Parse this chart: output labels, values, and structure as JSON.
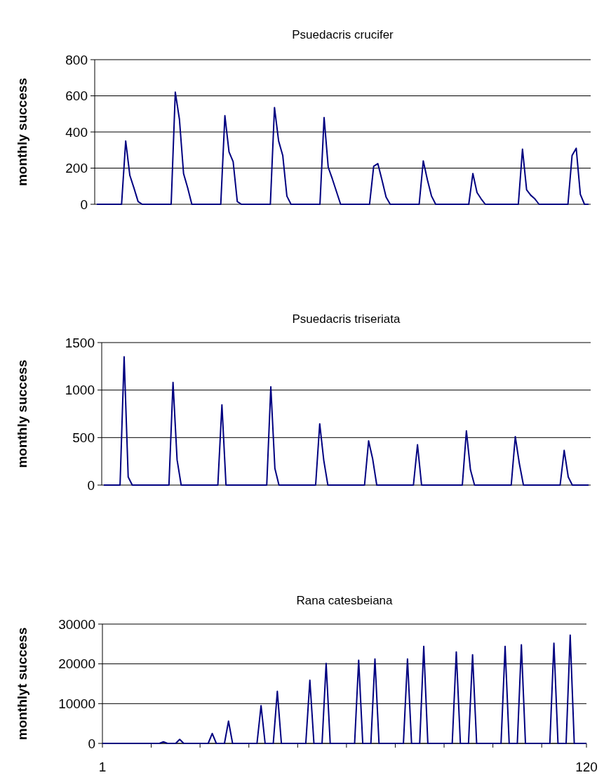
{
  "chart_data": [
    {
      "type": "line",
      "title": "Psuedacris crucifer",
      "ylabel": "monthly success",
      "color": "#000080",
      "grid": "y",
      "tick_labels": "y",
      "marker": "none",
      "categories": [
        null,
        null,
        null,
        null,
        null,
        null,
        null,
        null,
        null,
        null,
        null,
        null,
        null,
        null,
        null,
        null,
        null,
        null,
        null,
        null,
        null,
        null,
        null,
        null,
        null,
        null,
        null,
        null,
        null,
        null,
        null,
        null,
        null,
        null,
        null,
        null,
        null,
        null,
        null,
        null,
        null,
        null,
        null,
        null,
        null,
        null,
        null,
        null,
        null,
        null,
        null,
        null,
        null,
        null,
        null,
        null,
        null,
        null,
        null,
        null,
        null,
        null,
        null,
        null,
        null,
        null,
        null,
        null,
        null,
        null,
        null,
        null,
        null,
        null,
        null,
        null,
        null,
        null,
        null,
        null,
        null,
        null,
        null,
        null,
        null,
        null,
        null,
        null,
        null,
        null,
        null,
        null,
        null,
        null,
        null,
        null,
        null,
        null,
        null,
        null,
        null,
        null,
        null,
        null,
        null,
        null,
        null,
        null,
        null,
        null,
        null,
        null,
        null,
        null,
        null,
        null,
        null,
        null,
        null,
        null
      ],
      "values": [
        0,
        0,
        0,
        0,
        0,
        0,
        0,
        350,
        160,
        90,
        15,
        0,
        0,
        0,
        0,
        0,
        0,
        0,
        0,
        620,
        470,
        170,
        90,
        0,
        0,
        0,
        0,
        0,
        0,
        0,
        0,
        490,
        290,
        235,
        15,
        0,
        0,
        0,
        0,
        0,
        0,
        0,
        0,
        535,
        350,
        270,
        45,
        0,
        0,
        0,
        0,
        0,
        0,
        0,
        0,
        480,
        205,
        140,
        70,
        0,
        0,
        0,
        0,
        0,
        0,
        0,
        0,
        210,
        225,
        135,
        40,
        0,
        0,
        0,
        0,
        0,
        0,
        0,
        0,
        240,
        135,
        45,
        0,
        0,
        0,
        0,
        0,
        0,
        0,
        0,
        0,
        170,
        65,
        30,
        0,
        0,
        0,
        0,
        0,
        0,
        0,
        0,
        0,
        305,
        80,
        50,
        30,
        0,
        0,
        0,
        0,
        0,
        0,
        0,
        0,
        270,
        310,
        55,
        0,
        0
      ],
      "ylim": [
        0,
        800
      ],
      "yticks": [
        0,
        200,
        400,
        600,
        800
      ]
    },
    {
      "type": "line",
      "title": "Psuedacris triseriata",
      "ylabel": "monthly success",
      "color": "#000080",
      "grid": "y",
      "tick_labels": "y",
      "marker": "none",
      "categories": [
        null,
        null,
        null,
        null,
        null,
        null,
        null,
        null,
        null,
        null,
        null,
        null,
        null,
        null,
        null,
        null,
        null,
        null,
        null,
        null,
        null,
        null,
        null,
        null,
        null,
        null,
        null,
        null,
        null,
        null,
        null,
        null,
        null,
        null,
        null,
        null,
        null,
        null,
        null,
        null,
        null,
        null,
        null,
        null,
        null,
        null,
        null,
        null,
        null,
        null,
        null,
        null,
        null,
        null,
        null,
        null,
        null,
        null,
        null,
        null,
        null,
        null,
        null,
        null,
        null,
        null,
        null,
        null,
        null,
        null,
        null,
        null,
        null,
        null,
        null,
        null,
        null,
        null,
        null,
        null,
        null,
        null,
        null,
        null,
        null,
        null,
        null,
        null,
        null,
        null,
        null,
        null,
        null,
        null,
        null,
        null,
        null,
        null,
        null,
        null,
        null,
        null,
        null,
        null,
        null,
        null,
        null,
        null,
        null,
        null,
        null,
        null,
        null,
        null,
        null,
        null,
        null,
        null,
        null,
        null
      ],
      "values": [
        0,
        0,
        0,
        0,
        0,
        1350,
        85,
        0,
        0,
        0,
        0,
        0,
        0,
        0,
        0,
        0,
        0,
        1080,
        265,
        0,
        0,
        0,
        0,
        0,
        0,
        0,
        0,
        0,
        0,
        845,
        0,
        0,
        0,
        0,
        0,
        0,
        0,
        0,
        0,
        0,
        0,
        1035,
        175,
        0,
        0,
        0,
        0,
        0,
        0,
        0,
        0,
        0,
        0,
        645,
        260,
        0,
        0,
        0,
        0,
        0,
        0,
        0,
        0,
        0,
        0,
        465,
        275,
        0,
        0,
        0,
        0,
        0,
        0,
        0,
        0,
        0,
        0,
        425,
        0,
        0,
        0,
        0,
        0,
        0,
        0,
        0,
        0,
        0,
        0,
        570,
        160,
        0,
        0,
        0,
        0,
        0,
        0,
        0,
        0,
        0,
        0,
        510,
        225,
        0,
        0,
        0,
        0,
        0,
        0,
        0,
        0,
        0,
        0,
        365,
        85,
        0,
        0,
        0,
        0,
        0
      ],
      "ylim": [
        0,
        1500
      ],
      "yticks": [
        0,
        500,
        1000,
        1500
      ]
    },
    {
      "type": "line",
      "title": "Rana catesbeiana",
      "ylabel": "monthlyt success",
      "color": "#000080",
      "grid": "y",
      "marker": "none",
      "x": [
        1,
        2,
        3,
        4,
        5,
        6,
        7,
        8,
        9,
        10,
        11,
        12,
        13,
        14,
        15,
        16,
        17,
        18,
        19,
        20,
        21,
        22,
        23,
        24,
        25,
        26,
        27,
        28,
        29,
        30,
        31,
        32,
        33,
        34,
        35,
        36,
        37,
        38,
        39,
        40,
        41,
        42,
        43,
        44,
        45,
        46,
        47,
        48,
        49,
        50,
        51,
        52,
        53,
        54,
        55,
        56,
        57,
        58,
        59,
        60,
        61,
        62,
        63,
        64,
        65,
        66,
        67,
        68,
        69,
        70,
        71,
        72,
        73,
        74,
        75,
        76,
        77,
        78,
        79,
        80,
        81,
        82,
        83,
        84,
        85,
        86,
        87,
        88,
        89,
        90,
        91,
        92,
        93,
        94,
        95,
        96,
        97,
        98,
        99,
        100,
        101,
        102,
        103,
        104,
        105,
        106,
        107,
        108,
        109,
        110,
        111,
        112,
        113,
        114,
        115,
        116,
        117,
        118,
        119,
        120
      ],
      "values": [
        0,
        0,
        0,
        0,
        0,
        0,
        0,
        0,
        0,
        0,
        0,
        0,
        0,
        0,
        0,
        400,
        0,
        0,
        0,
        1000,
        0,
        0,
        0,
        0,
        0,
        0,
        0,
        2500,
        0,
        0,
        0,
        5600,
        0,
        0,
        0,
        0,
        0,
        0,
        0,
        9500,
        0,
        0,
        0,
        13100,
        0,
        0,
        0,
        0,
        0,
        0,
        0,
        15900,
        0,
        0,
        0,
        20100,
        0,
        0,
        0,
        0,
        0,
        0,
        0,
        20900,
        0,
        0,
        0,
        21200,
        0,
        0,
        0,
        0,
        0,
        0,
        0,
        21200,
        0,
        0,
        0,
        24400,
        0,
        0,
        0,
        0,
        0,
        0,
        0,
        23000,
        0,
        0,
        0,
        22300,
        0,
        0,
        0,
        0,
        0,
        0,
        0,
        24400,
        0,
        0,
        0,
        24800,
        0,
        0,
        0,
        0,
        0,
        0,
        0,
        25200,
        0,
        0,
        0,
        27200,
        0,
        0,
        0,
        0
      ],
      "xlim": [
        1,
        120
      ],
      "xticks": [
        1,
        {
          "value": 13,
          "label": null
        },
        {
          "value": 25,
          "label": null
        },
        {
          "value": 37,
          "label": null
        },
        {
          "value": 49,
          "label": null
        },
        {
          "value": 61,
          "label": null
        },
        {
          "value": 73,
          "label": null
        },
        {
          "value": 85,
          "label": null
        },
        {
          "value": 97,
          "label": null
        },
        {
          "value": 109,
          "label": null
        },
        120
      ],
      "ylim": [
        0,
        30000
      ],
      "yticks": [
        0,
        10000,
        20000,
        30000
      ]
    }
  ]
}
